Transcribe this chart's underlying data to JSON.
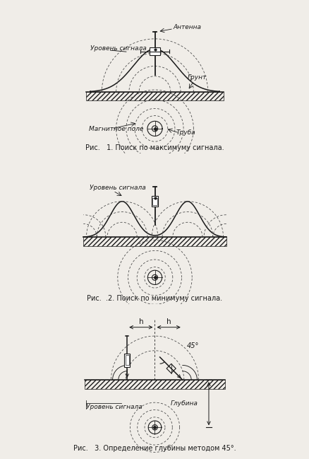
{
  "fig_width": 4.39,
  "fig_height": 6.49,
  "bg_color": "#f0ede8",
  "line_color": "#1a1a1a",
  "caption1": "Рис.   1. Поиск по максимуму сигнала.",
  "caption2": "Рис.  .2. Поиск по минимуму сигнала.",
  "caption3": "Рис.   3. Определение глубины методом 45°.",
  "label_signal1": "Уровень сигнала",
  "label_antenna": "Антенна",
  "label_ground": "Грунт",
  "label_magfield": "Магнитное поле",
  "label_pipe": "Труба",
  "label_signal2": "Уровень сигнала",
  "label_signal3": "Уровень сигнала",
  "label_depth": "Глубина",
  "label_h1": "h",
  "label_h2": "h",
  "label_45": "45°"
}
